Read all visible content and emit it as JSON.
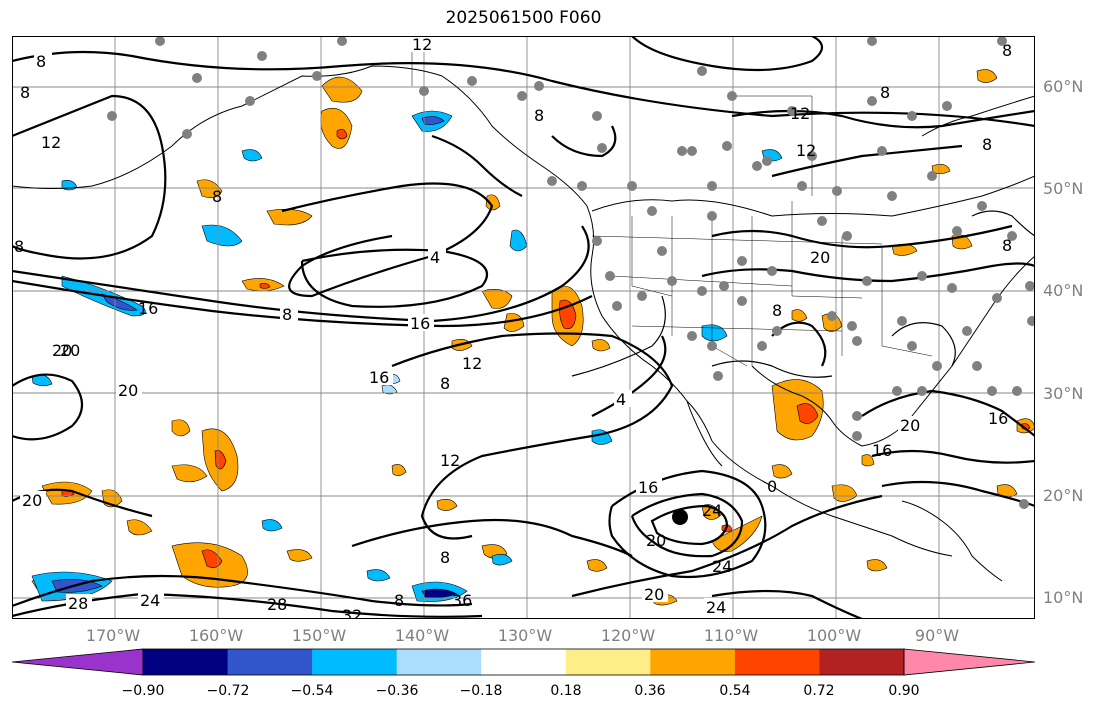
{
  "title": "2025061500 F060",
  "lat_labels": [
    "60°N",
    "50°N",
    "40°N",
    "30°N",
    "20°N",
    "10°N"
  ],
  "lon_labels": [
    "170°W",
    "160°W",
    "150°W",
    "140°W",
    "130°W",
    "120°W",
    "110°W",
    "100°W",
    "90°W"
  ],
  "colorbar": {
    "tick_labels": [
      "−0.90",
      "−0.72",
      "−0.54",
      "−0.36",
      "−0.18",
      "0.18",
      "0.36",
      "0.54",
      "0.72",
      "0.90"
    ],
    "colors": [
      "#9933cc",
      "#000080",
      "#3355cc",
      "#00bbff",
      "#aaddff",
      "#ffffff",
      "#ffee88",
      "#ffa500",
      "#ff4400",
      "#b22222",
      "#ff88aa"
    ]
  },
  "contour_labels": [
    "12",
    "8",
    "8",
    "12",
    "8",
    "12",
    "12",
    "8",
    "8",
    "8",
    "8",
    "4",
    "8",
    "16",
    "16",
    "12",
    "8",
    "4",
    "20",
    "20",
    "16",
    "20",
    "20",
    "16",
    "12",
    "16",
    "20",
    "20",
    "24",
    "24",
    "28",
    "24",
    "28",
    "24",
    "32",
    "36",
    "8",
    "8",
    "20",
    "8",
    "20",
    "8",
    "8",
    "16",
    "0"
  ],
  "fill_colors": {
    "orange": "#ffa500",
    "red": "#ff4400",
    "yellow": "#ffee88",
    "cyan": "#00bbff",
    "lightblue": "#aaddff",
    "marker": "#808080"
  }
}
